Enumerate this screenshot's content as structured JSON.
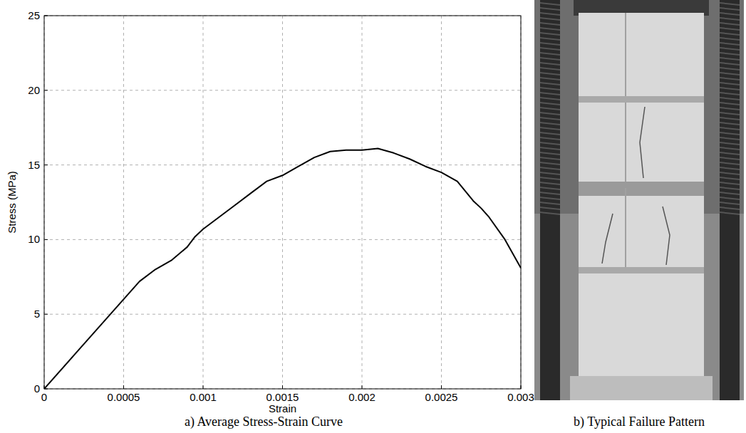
{
  "chart_data": {
    "type": "line",
    "title": "a) Average Stress-Strain Curve",
    "x_label": "Strain",
    "y_label": "Stress (MPa)",
    "x": [
      0,
      0.0002,
      0.0004,
      0.0006,
      0.0007,
      0.0008,
      0.0009,
      0.00095,
      0.001,
      0.0011,
      0.0012,
      0.0013,
      0.0014,
      0.0015,
      0.0016,
      0.0017,
      0.0018,
      0.0019,
      0.002,
      0.0021,
      0.0022,
      0.0023,
      0.0024,
      0.0025,
      0.0026,
      0.0027,
      0.00275,
      0.0028,
      0.0029,
      0.003
    ],
    "values": [
      0,
      2.4,
      4.8,
      7.2,
      8.0,
      8.6,
      9.5,
      10.2,
      10.7,
      11.5,
      12.3,
      13.1,
      13.9,
      14.3,
      14.9,
      15.5,
      15.9,
      16.0,
      16.0,
      16.1,
      15.8,
      15.4,
      14.9,
      14.5,
      13.9,
      12.6,
      12.1,
      11.5,
      10.0,
      8.1
    ],
    "color": "#000000",
    "xlim": [
      0,
      0.003
    ],
    "xticks": [
      0,
      0.0005,
      0.001,
      0.0015,
      0.002,
      0.0025,
      0.003
    ],
    "ylim": [
      0,
      25
    ],
    "yticks": [
      0,
      5,
      10,
      15,
      20,
      25
    ],
    "grid": true
  },
  "photo": {
    "caption": "b) Typical Failure Pattern"
  }
}
